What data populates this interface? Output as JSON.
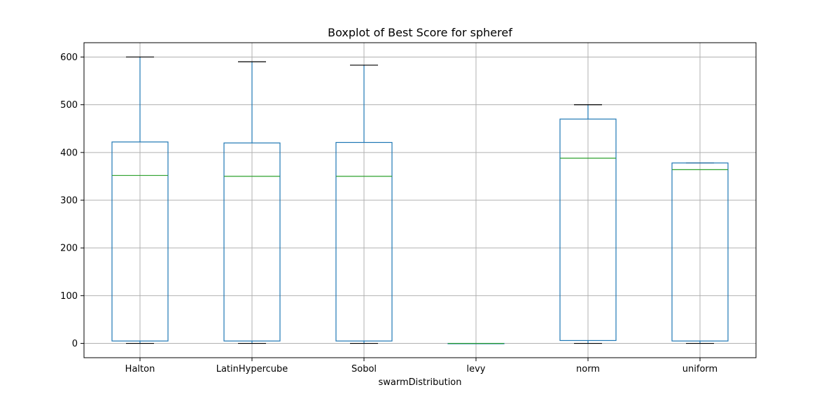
{
  "chart_data": {
    "type": "boxplot",
    "title": "Boxplot of Best Score for spheref",
    "xlabel": "swarmDistribution",
    "ylabel": "",
    "categories": [
      "Halton",
      "LatinHypercube",
      "Sobol",
      "levy",
      "norm",
      "uniform"
    ],
    "boxes": [
      {
        "name": "Halton",
        "whisker_low": 0,
        "q1": 5,
        "median": 352,
        "q3": 422,
        "whisker_high": 600
      },
      {
        "name": "LatinHypercube",
        "whisker_low": 0,
        "q1": 5,
        "median": 350,
        "q3": 420,
        "whisker_high": 590
      },
      {
        "name": "Sobol",
        "whisker_low": 0,
        "q1": 5,
        "median": 350,
        "q3": 421,
        "whisker_high": 583
      },
      {
        "name": "levy",
        "whisker_low": 0,
        "q1": 0,
        "median": 0,
        "q3": 0,
        "whisker_high": 0
      },
      {
        "name": "norm",
        "whisker_low": 0,
        "q1": 6,
        "median": 388,
        "q3": 470,
        "whisker_high": 500
      },
      {
        "name": "uniform",
        "whisker_low": 0,
        "q1": 5,
        "median": 364,
        "q3": 378,
        "whisker_high": 378
      }
    ],
    "ylim": [
      -30,
      630
    ],
    "yticks": [
      0,
      100,
      200,
      300,
      400,
      500,
      600
    ],
    "grid": true,
    "colors": {
      "box": "#1f77b4",
      "median": "#2ca02c",
      "whisker": "#1f77b4",
      "cap": "#000000",
      "grid": "#b0b0b0"
    }
  }
}
